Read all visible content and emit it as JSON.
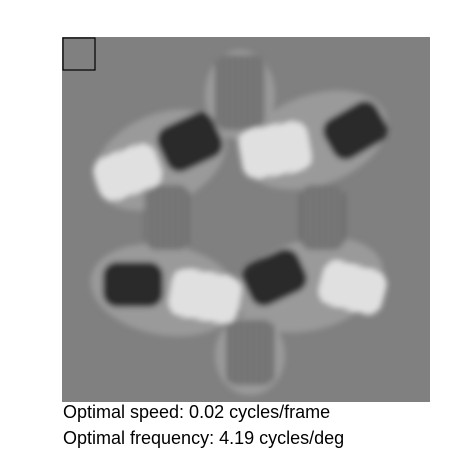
{
  "caption": {
    "speed": "Optimal speed: 0.02 cycles/frame",
    "frequency": "Optimal frequency: 4.19 cycles/deg"
  }
}
